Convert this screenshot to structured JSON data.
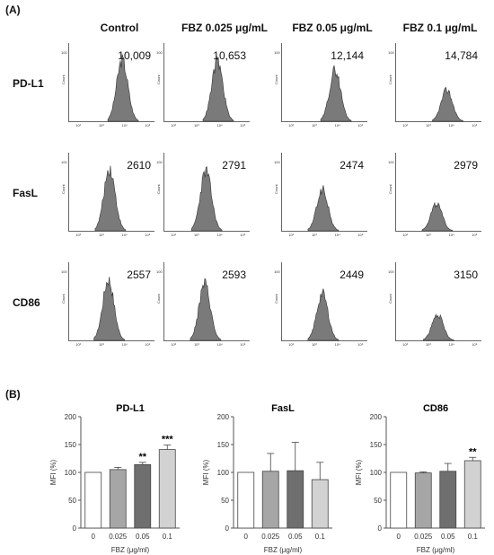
{
  "panels": {
    "a": "(A)",
    "b": "(B)"
  },
  "columns": [
    "Control",
    "FBZ 0.025 μg/mL",
    "FBZ 0.05 μg/mL",
    "FBZ 0.1 μg/mL"
  ],
  "rows": [
    "PD-L1",
    "FasL",
    "CD86"
  ],
  "histogram_axis": {
    "ylabel": "Count",
    "ytick": "100",
    "xticks": [
      "10²",
      "10³",
      "10⁴",
      "10⁵"
    ]
  },
  "colors": {
    "fill": "#7a7a7a",
    "outline": "#333333",
    "bar_control": "#ffffff",
    "bar_025": "#a6a6a6",
    "bar_05": "#6f6f6f",
    "bar_1": "#d2d2d2"
  },
  "chart_data": [
    {
      "type": "histogram-grid",
      "rows": [
        "PD-L1",
        "FasL",
        "CD86"
      ],
      "columns": [
        "Control",
        "FBZ 0.025 μg/mL",
        "FBZ 0.05 μg/mL",
        "FBZ 0.1 μg/mL"
      ],
      "mfi_labels": [
        [
          "10,009",
          "10,653",
          "12,144",
          "14,784"
        ],
        [
          "2610",
          "2791",
          "2474",
          "2979"
        ],
        [
          "2557",
          "2593",
          "2449",
          "3150"
        ]
      ],
      "peak_count": [
        [
          86,
          84,
          72,
          44
        ],
        [
          88,
          84,
          58,
          38
        ],
        [
          86,
          80,
          66,
          36
        ]
      ],
      "peak_position": [
        [
          3.9,
          3.9,
          3.9,
          3.8
        ],
        [
          3.35,
          3.4,
          3.35,
          3.35
        ],
        [
          3.3,
          3.35,
          3.35,
          3.4
        ]
      ]
    },
    {
      "type": "bar",
      "title": "PD-L1",
      "xlabel": "FBZ (μg/ml)",
      "ylabel": "MFI (%)",
      "categories": [
        "0",
        "0.025",
        "0.05",
        "0.1"
      ],
      "values": [
        100,
        105,
        114,
        141
      ],
      "errors": [
        0,
        4,
        4,
        8
      ],
      "significance": [
        "",
        "",
        "**",
        "***"
      ],
      "yticks": [
        0,
        50,
        100,
        150,
        200
      ],
      "ylim": [
        0,
        200
      ]
    },
    {
      "type": "bar",
      "title": "FasL",
      "xlabel": "FBZ (μg/ml)",
      "ylabel": "MFI (%)",
      "categories": [
        "0",
        "0.025",
        "0.05",
        "0.1"
      ],
      "values": [
        100,
        102,
        103,
        87
      ],
      "errors": [
        0,
        32,
        51,
        31
      ],
      "significance": [
        "",
        "",
        "",
        ""
      ],
      "yticks": [
        0,
        50,
        100,
        150,
        200
      ],
      "ylim": [
        0,
        200
      ]
    },
    {
      "type": "bar",
      "title": "CD86",
      "xlabel": "FBZ (μg/ml)",
      "ylabel": "MFI (%)",
      "categories": [
        "0",
        "0.025",
        "0.05",
        "0.1"
      ],
      "values": [
        100,
        99,
        102,
        121
      ],
      "errors": [
        0,
        2,
        14,
        6
      ],
      "significance": [
        "",
        "",
        "",
        "**"
      ],
      "yticks": [
        0,
        50,
        100,
        150,
        200
      ],
      "ylim": [
        0,
        200
      ]
    }
  ]
}
